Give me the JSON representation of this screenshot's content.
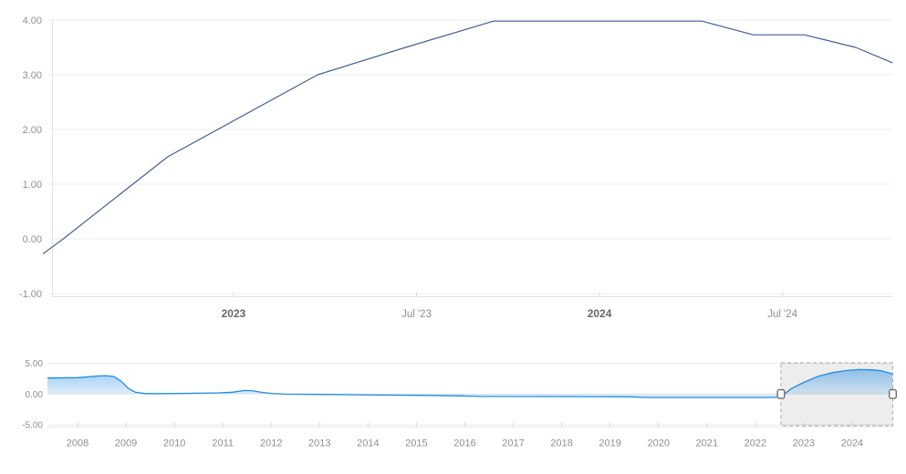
{
  "colors": {
    "background": "#ffffff",
    "grid": "#ededed",
    "axis_line": "#e3e3e3",
    "tick": "#d8d8d8",
    "label": "#8f8f8f",
    "label_bold": "#686868",
    "main_line": "#44608e",
    "nav_line": "#1f8be4",
    "nav_fill": "#1f8be4",
    "selection_fill_color": "#000000",
    "selection_fill_opacity": 0.07,
    "selection_border": "#a9a9a9",
    "handle_fill": "#ffffff",
    "handle_border": "#6f6f6f"
  },
  "chart_data": [
    {
      "type": "line",
      "id": "main",
      "title": "",
      "x_unit": "decimal_year",
      "xlim": [
        2022.504,
        2024.8
      ],
      "ylim": [
        -1.35,
        4.35
      ],
      "grid": true,
      "legend": false,
      "y_ticks": [
        {
          "v": 4,
          "label": "4.00"
        },
        {
          "v": 3,
          "label": "3.00"
        },
        {
          "v": 2,
          "label": "2.00"
        },
        {
          "v": 1,
          "label": "1.00"
        },
        {
          "v": 0,
          "label": "0.00"
        },
        {
          "v": -1,
          "label": "-1.00"
        }
      ],
      "x_ticks": [
        {
          "v": 2023,
          "label": "2023",
          "bold": true
        },
        {
          "v": 2023.5,
          "label": "Jul '23",
          "bold": false
        },
        {
          "v": 2024,
          "label": "2024",
          "bold": true
        },
        {
          "v": 2024.5,
          "label": "Jul '24",
          "bold": false
        }
      ],
      "series": [
        {
          "name": "policy-rate",
          "color_key": "main_line",
          "points": [
            [
              2022.48,
              -0.27
            ],
            [
              2022.535,
              0.0
            ],
            [
              2022.82,
              1.5
            ],
            [
              2023.23,
              3.0
            ],
            [
              2023.47,
              3.5
            ],
            [
              2023.71,
              3.98
            ],
            [
              2024.28,
              3.98
            ],
            [
              2024.42,
              3.73
            ],
            [
              2024.56,
              3.73
            ],
            [
              2024.7,
              3.5
            ],
            [
              2024.8,
              3.22
            ]
          ]
        }
      ]
    },
    {
      "type": "area",
      "id": "navigator",
      "title": "",
      "x_unit": "decimal_year",
      "xlim": [
        2007.378,
        2024.83
      ],
      "ylim": [
        -5.2,
        5.2
      ],
      "grid": true,
      "legend": false,
      "y_ticks": [
        {
          "v": 5,
          "label": "5.00"
        },
        {
          "v": 0,
          "label": "0.00"
        },
        {
          "v": -5,
          "label": "-5.00"
        }
      ],
      "x_ticks": [
        {
          "v": 2008,
          "label": "2008"
        },
        {
          "v": 2009,
          "label": "2009"
        },
        {
          "v": 2010,
          "label": "2010"
        },
        {
          "v": 2011,
          "label": "2011"
        },
        {
          "v": 2012,
          "label": "2012"
        },
        {
          "v": 2013,
          "label": "2013"
        },
        {
          "v": 2014,
          "label": "2014"
        },
        {
          "v": 2015,
          "label": "2015"
        },
        {
          "v": 2016,
          "label": "2016"
        },
        {
          "v": 2017,
          "label": "2017"
        },
        {
          "v": 2018,
          "label": "2018"
        },
        {
          "v": 2019,
          "label": "2019"
        },
        {
          "v": 2020,
          "label": "2020"
        },
        {
          "v": 2021,
          "label": "2021"
        },
        {
          "v": 2022,
          "label": "2022"
        },
        {
          "v": 2023,
          "label": "2023"
        },
        {
          "v": 2024,
          "label": "2024"
        }
      ],
      "series": [
        {
          "name": "policy-rate-history",
          "color_key": "nav_line",
          "points": [
            [
              2007.378,
              2.62
            ],
            [
              2008.0,
              2.68
            ],
            [
              2008.45,
              2.95
            ],
            [
              2008.6,
              3.0
            ],
            [
              2008.75,
              2.85
            ],
            [
              2008.9,
              2.1
            ],
            [
              2009.05,
              0.9
            ],
            [
              2009.2,
              0.28
            ],
            [
              2009.4,
              0.08
            ],
            [
              2009.8,
              0.07
            ],
            [
              2010.3,
              0.12
            ],
            [
              2010.9,
              0.2
            ],
            [
              2011.2,
              0.3
            ],
            [
              2011.45,
              0.58
            ],
            [
              2011.6,
              0.55
            ],
            [
              2011.8,
              0.28
            ],
            [
              2012.0,
              0.1
            ],
            [
              2012.3,
              -0.02
            ],
            [
              2013.0,
              -0.06
            ],
            [
              2013.8,
              -0.12
            ],
            [
              2014.5,
              -0.18
            ],
            [
              2015.3,
              -0.22
            ],
            [
              2015.9,
              -0.3
            ],
            [
              2016.3,
              -0.38
            ],
            [
              2017.5,
              -0.4
            ],
            [
              2019.4,
              -0.44
            ],
            [
              2019.7,
              -0.55
            ],
            [
              2022.4,
              -0.55
            ],
            [
              2022.55,
              -0.3
            ],
            [
              2022.75,
              0.9
            ],
            [
              2023.0,
              1.9
            ],
            [
              2023.3,
              2.9
            ],
            [
              2023.6,
              3.5
            ],
            [
              2023.9,
              3.85
            ],
            [
              2024.15,
              4.0
            ],
            [
              2024.4,
              3.95
            ],
            [
              2024.6,
              3.8
            ],
            [
              2024.83,
              3.3
            ]
          ]
        }
      ],
      "selection": {
        "from": 2022.53,
        "to": 2024.85
      }
    }
  ]
}
